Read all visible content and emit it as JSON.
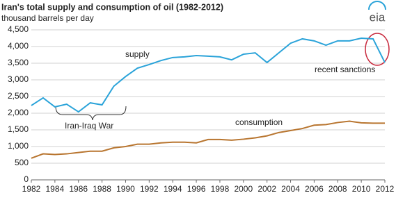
{
  "chart_data": {
    "type": "line",
    "title": "Iran's total supply and consumption of oil (1982-2012)",
    "subtitle": "thousand barrels per day",
    "logo": "eia",
    "x": [
      1982,
      1983,
      1984,
      1985,
      1986,
      1987,
      1988,
      1989,
      1990,
      1991,
      1992,
      1993,
      1994,
      1995,
      1996,
      1997,
      1998,
      1999,
      2000,
      2001,
      2002,
      2003,
      2004,
      2005,
      2006,
      2007,
      2008,
      2009,
      2010,
      2011,
      2012
    ],
    "series": [
      {
        "name": "supply",
        "color": "#2aa3d9",
        "values": [
          2230,
          2460,
          2190,
          2270,
          2040,
          2310,
          2250,
          2810,
          3100,
          3350,
          3460,
          3580,
          3670,
          3690,
          3730,
          3710,
          3690,
          3600,
          3770,
          3810,
          3520,
          3810,
          4100,
          4230,
          4170,
          4040,
          4170,
          4170,
          4250,
          4230,
          3520
        ]
      },
      {
        "name": "consumption",
        "color": "#b8752f",
        "values": [
          650,
          780,
          760,
          780,
          820,
          860,
          860,
          960,
          1000,
          1070,
          1070,
          1110,
          1130,
          1130,
          1110,
          1210,
          1210,
          1190,
          1220,
          1260,
          1320,
          1420,
          1480,
          1540,
          1640,
          1660,
          1720,
          1760,
          1710,
          1700,
          1700
        ]
      }
    ],
    "annotations": [
      "Iran-Iraq War",
      "recent sanctions"
    ],
    "xlim": [
      1982,
      2012
    ],
    "xticks": [
      1982,
      1984,
      1986,
      1988,
      1990,
      1992,
      1994,
      1996,
      1998,
      2000,
      2002,
      2004,
      2006,
      2008,
      2010,
      2012
    ],
    "ylim": [
      0,
      4500
    ],
    "yticks": [
      0,
      500,
      {
        "value": 1000,
        "label": "1,000"
      },
      {
        "value": 1500,
        "label": "1,500"
      },
      {
        "value": 2000,
        "label": "2,000"
      },
      {
        "value": 2500,
        "label": "2,500"
      },
      {
        "value": 3000,
        "label": "3,000"
      },
      {
        "value": 3500,
        "label": "3,500"
      },
      {
        "value": 4000,
        "label": "4,000"
      },
      {
        "value": 4500,
        "label": "4,500"
      }
    ],
    "grid": true
  }
}
